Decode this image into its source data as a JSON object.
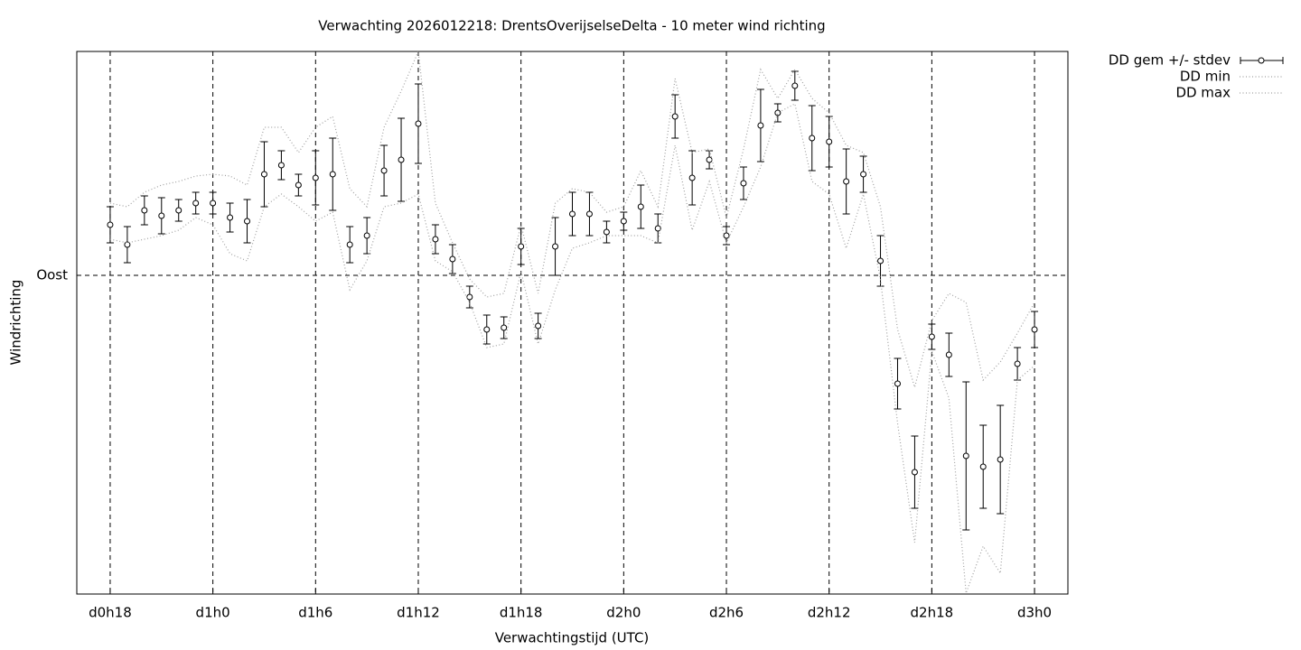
{
  "chart_data": {
    "type": "line",
    "title": "Verwachting 2026012218: DrentsOverijselseDelta - 10 meter wind richting",
    "x_label": "Verwachtingstijd (UTC)",
    "y_label": "Windrichting",
    "x": [
      0,
      1,
      2,
      3,
      4,
      5,
      6,
      7,
      8,
      9,
      10,
      11,
      12,
      13,
      14,
      15,
      16,
      17,
      18,
      19,
      20,
      21,
      22,
      23,
      24,
      25,
      26,
      27,
      28,
      29,
      30,
      31,
      32,
      33,
      34,
      35,
      36,
      37,
      38,
      39,
      40,
      41,
      42,
      43,
      44,
      45,
      46,
      47,
      48,
      49,
      50,
      51,
      52,
      53,
      54
    ],
    "xlim": [
      -1.95,
      55.95
    ],
    "xticks": [
      {
        "value": 0,
        "label": "d0h18"
      },
      {
        "value": 6,
        "label": "d1h0"
      },
      {
        "value": 12,
        "label": "d1h6"
      },
      {
        "value": 18,
        "label": "d1h12"
      },
      {
        "value": 24,
        "label": "d1h18"
      },
      {
        "value": 30,
        "label": "d2h0"
      },
      {
        "value": 36,
        "label": "d2h6"
      },
      {
        "value": 42,
        "label": "d2h12"
      },
      {
        "value": 48,
        "label": "d2h18"
      },
      {
        "value": 54,
        "label": "d3h0"
      }
    ],
    "ylim": [
      1.75,
      152
    ],
    "yticks": [
      {
        "value": 90,
        "label": "Oost"
      }
    ],
    "grid": true,
    "legend": "outside-top-right",
    "series": [
      {
        "name": "DD gem +/- stdev",
        "color": "#000000",
        "style": "errorbar",
        "values": [
          104,
          98.5,
          108,
          106.5,
          108,
          110,
          110,
          106,
          105,
          118,
          120.5,
          115,
          117,
          118,
          98.5,
          101,
          119,
          122,
          132,
          100,
          94.5,
          84,
          75,
          75.5,
          98,
          76,
          98,
          107,
          107,
          102,
          105,
          109,
          103,
          134,
          117,
          122,
          101,
          115.5,
          131.5,
          135,
          142.5,
          128,
          127,
          116,
          118,
          94,
          60,
          35.5,
          73,
          68,
          40,
          37,
          39,
          65.5,
          75
        ],
        "errors": [
          5,
          5,
          4,
          5,
          3,
          3,
          3,
          4,
          6,
          9,
          4,
          3,
          7.5,
          10,
          5,
          5,
          7,
          11.5,
          11,
          4,
          4,
          3,
          4,
          3,
          5,
          3.5,
          8,
          6,
          6,
          3,
          2.5,
          6,
          4,
          6,
          7.5,
          2.5,
          2.5,
          4.5,
          10,
          2.5,
          4,
          9,
          7,
          9,
          5,
          7,
          7,
          10,
          3.5,
          6,
          20.5,
          11.5,
          15,
          4.5,
          5
        ]
      },
      {
        "name": "DD min",
        "color": "#a0a0a0",
        "style": "dotted",
        "values": [
          100,
          99,
          100,
          101,
          102.5,
          106,
          104,
          96,
          94,
          109,
          112.5,
          109,
          105,
          107.5,
          86,
          94,
          109,
          110,
          112.5,
          94,
          91,
          82.5,
          70,
          71,
          91,
          71,
          86,
          97.5,
          99,
          101,
          101,
          101,
          99,
          126,
          102.5,
          116,
          99,
          109,
          120,
          135,
          137.5,
          116,
          112.5,
          97.5,
          112.5,
          89,
          49,
          16,
          69,
          56,
          2,
          15,
          7.5,
          61,
          65
        ]
      },
      {
        "name": "DD max",
        "color": "#a0a0a0",
        "style": "dotted",
        "values": [
          110,
          109,
          113,
          115,
          116,
          117.5,
          118,
          117.5,
          115,
          131,
          131,
          124,
          131,
          134,
          114,
          109,
          131,
          141,
          152,
          110,
          99,
          89,
          84,
          85,
          104,
          85,
          110,
          114,
          113,
          107.5,
          109,
          119,
          109,
          144.5,
          124,
          125,
          106,
          125,
          147,
          139,
          147,
          139,
          135,
          126,
          124,
          109,
          75,
          59,
          77.5,
          85,
          82.5,
          61,
          66,
          74,
          82.5
        ]
      }
    ]
  }
}
